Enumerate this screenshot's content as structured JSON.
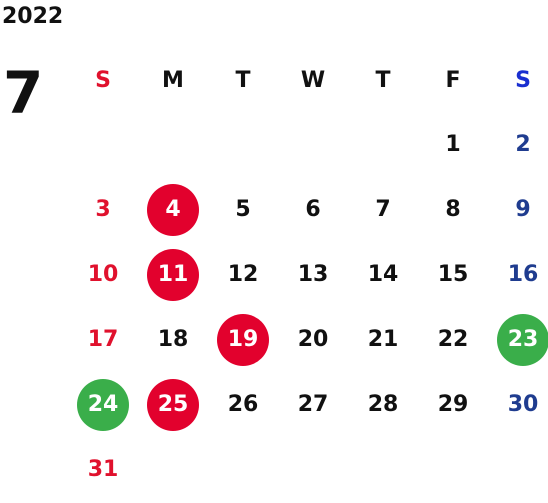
{
  "year": "2022",
  "month": "7",
  "weekdays": [
    "S",
    "M",
    "T",
    "W",
    "T",
    "F",
    "S"
  ],
  "colors": {
    "sunday_text": "#e0112d",
    "saturday_text": "#1f3c8f",
    "holiday_circle": "#e2012d",
    "special_circle": "#3aae4a"
  },
  "weeks": [
    [
      "",
      "",
      "",
      "",
      "",
      "1",
      "2"
    ],
    [
      "3",
      "4",
      "5",
      "6",
      "7",
      "8",
      "9"
    ],
    [
      "10",
      "11",
      "12",
      "13",
      "14",
      "15",
      "16"
    ],
    [
      "17",
      "18",
      "19",
      "20",
      "21",
      "22",
      "23"
    ],
    [
      "24",
      "25",
      "26",
      "27",
      "28",
      "29",
      "30"
    ],
    [
      "31",
      "",
      "",
      "",
      "",
      "",
      ""
    ]
  ],
  "red_marked_days": [
    "4",
    "11",
    "19",
    "25"
  ],
  "green_marked_days": [
    "23",
    "24"
  ]
}
